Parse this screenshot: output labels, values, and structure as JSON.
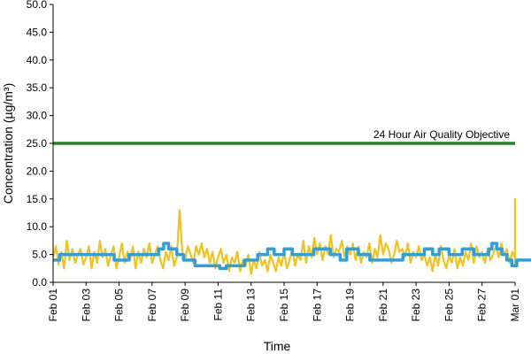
{
  "chart_data": {
    "type": "line",
    "xlabel": "Time",
    "ylabel": "Concentration (µg/m³)",
    "ylim": [
      0,
      50
    ],
    "yticks": [
      "0.0",
      "5.0",
      "10.0",
      "15.0",
      "20.0",
      "25.0",
      "30.0",
      "35.0",
      "40.0",
      "45.0",
      "50.0"
    ],
    "xlim": [
      "Feb 01",
      "Mar 01"
    ],
    "xticks": [
      "Feb 01",
      "Feb 03",
      "Feb 05",
      "Feb 07",
      "Feb 09",
      "Feb 11",
      "Feb 13",
      "Feb 15",
      "Feb 17",
      "Feb 19",
      "Feb 21",
      "Feb 23",
      "Feb 25",
      "Feb 27",
      "Mar 01"
    ],
    "grid": false,
    "colors": {
      "hourly": "#f2c21b",
      "daily": "#2e9fdc",
      "objective": "#1e8a1e"
    },
    "objective": {
      "label": "24 Hour Air Quality Objective",
      "value": 25
    },
    "series": [
      {
        "style": "hourly",
        "x_interval_hours": 4,
        "values": [
          4.5,
          6.5,
          3.2,
          5.5,
          2.5,
          7.5,
          4.0,
          6.0,
          3.5,
          5.0,
          6.0,
          3.2,
          4.5,
          6.5,
          2.5,
          5.5,
          3.5,
          7.5,
          4.5,
          6.0,
          3.0,
          5.0,
          6.5,
          2.5,
          4.5,
          7.0,
          3.5,
          5.5,
          4.0,
          6.5,
          2.5,
          5.5,
          3.5,
          6.0,
          4.5,
          7.0,
          3.5,
          5.0,
          6.5,
          4.0,
          2.5,
          5.5,
          4.0,
          6.5,
          3.0,
          4.5,
          13.0,
          5.5,
          4.0,
          6.5,
          5.0,
          3.5,
          6.5,
          5.0,
          7.0,
          4.5,
          6.0,
          3.5,
          5.5,
          2.5,
          4.5,
          6.0,
          3.5,
          5.0,
          2.0,
          4.5,
          3.5,
          5.5,
          2.0,
          4.0,
          3.0,
          5.0,
          1.5,
          4.0,
          2.5,
          5.5,
          3.0,
          4.0,
          2.0,
          5.0,
          3.5,
          2.0,
          4.5,
          3.0,
          5.5,
          2.5,
          4.0,
          6.0,
          3.0,
          5.0,
          4.0,
          7.5,
          3.5,
          6.5,
          4.5,
          8.0,
          5.0,
          7.0,
          4.0,
          6.5,
          5.0,
          8.5,
          4.5,
          6.0,
          5.5,
          7.5,
          4.5,
          6.5,
          5.0,
          7.0,
          4.0,
          6.5,
          3.5,
          5.5,
          4.5,
          7.0,
          3.5,
          6.0,
          4.5,
          8.5,
          5.0,
          7.0,
          6.0,
          3.5,
          5.0,
          7.5,
          5.5,
          6.0,
          4.5,
          7.0,
          3.5,
          5.5,
          4.5,
          6.5,
          4.0,
          5.0,
          3.0,
          4.5,
          2.0,
          5.0,
          3.0,
          6.5,
          4.0,
          2.5,
          5.0,
          3.5,
          6.0,
          2.5,
          4.5,
          3.0,
          5.5,
          4.0,
          7.0,
          3.5,
          6.5,
          4.5,
          5.5,
          3.5,
          6.0,
          4.0,
          5.0,
          6.5,
          4.5,
          7.0,
          5.0,
          6.0,
          3.5,
          5.5,
          4.5,
          6.5,
          5.0,
          15.0,
          6.5,
          5.0,
          7.0,
          4.0,
          3.0,
          5.5,
          4.5,
          6.0,
          5.0,
          5.5
        ]
      },
      {
        "style": "daily",
        "points": [
          [
            0,
            4
          ],
          [
            0.4,
            4
          ],
          [
            0.4,
            5
          ],
          [
            3.7,
            5
          ],
          [
            3.7,
            4
          ],
          [
            4.6,
            4
          ],
          [
            4.6,
            5
          ],
          [
            6.4,
            5
          ],
          [
            6.4,
            6
          ],
          [
            6.7,
            6
          ],
          [
            6.7,
            7
          ],
          [
            7.0,
            7
          ],
          [
            7.0,
            6
          ],
          [
            7.5,
            6
          ],
          [
            7.5,
            5
          ],
          [
            7.9,
            5
          ],
          [
            7.9,
            4
          ],
          [
            8.6,
            4
          ],
          [
            8.6,
            3
          ],
          [
            10.1,
            3
          ],
          [
            10.1,
            2.5
          ],
          [
            10.5,
            2.5
          ],
          [
            10.5,
            3
          ],
          [
            11.6,
            3
          ],
          [
            11.6,
            4
          ],
          [
            12.4,
            4
          ],
          [
            12.4,
            5
          ],
          [
            13.0,
            5
          ],
          [
            13.0,
            6
          ],
          [
            13.4,
            6
          ],
          [
            13.4,
            5
          ],
          [
            14.0,
            5
          ],
          [
            14.0,
            6
          ],
          [
            14.5,
            6
          ],
          [
            14.5,
            5
          ],
          [
            15.8,
            5
          ],
          [
            15.8,
            6
          ],
          [
            16.8,
            6
          ],
          [
            16.8,
            5
          ],
          [
            17.4,
            5
          ],
          [
            17.4,
            4
          ],
          [
            17.8,
            4
          ],
          [
            17.8,
            6
          ],
          [
            18.5,
            6
          ],
          [
            18.5,
            5
          ],
          [
            19.2,
            5
          ],
          [
            19.2,
            4
          ],
          [
            21.2,
            4
          ],
          [
            21.2,
            5
          ],
          [
            22.5,
            5
          ],
          [
            22.5,
            6
          ],
          [
            23.0,
            6
          ],
          [
            23.0,
            5
          ],
          [
            23.4,
            5
          ],
          [
            23.4,
            6
          ],
          [
            24.0,
            6
          ],
          [
            24.0,
            5
          ],
          [
            24.8,
            5
          ],
          [
            24.8,
            6
          ],
          [
            25.5,
            6
          ],
          [
            25.5,
            5
          ],
          [
            26.4,
            5
          ],
          [
            26.4,
            6
          ],
          [
            26.6,
            6
          ],
          [
            26.6,
            7
          ],
          [
            26.9,
            7
          ],
          [
            26.9,
            6
          ],
          [
            27.2,
            6
          ],
          [
            27.2,
            5
          ],
          [
            27.5,
            5
          ],
          [
            27.5,
            4
          ],
          [
            27.8,
            4
          ],
          [
            27.8,
            3
          ],
          [
            28.1,
            3
          ],
          [
            28.1,
            4
          ],
          [
            29,
            4
          ]
        ]
      }
    ]
  }
}
